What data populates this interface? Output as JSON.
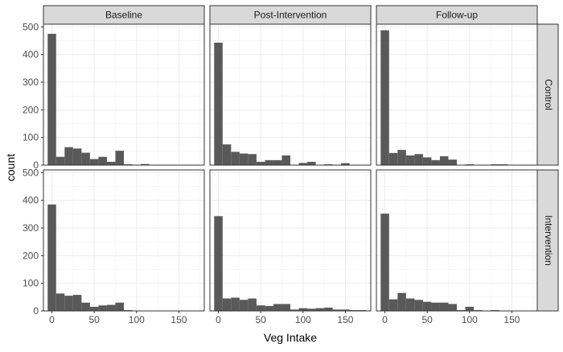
{
  "chart_data": {
    "type": "bar",
    "subtype": "faceted-histogram",
    "xlabel": "Veg Intake",
    "ylabel": "count",
    "xlim": [
      -10,
      180
    ],
    "ylim": [
      0,
      510
    ],
    "x_ticks": [
      0,
      50,
      100,
      150
    ],
    "y_ticks": [
      0,
      100,
      200,
      300,
      400,
      500
    ],
    "bin_width": 10,
    "bin_starts": [
      -5,
      5,
      15,
      25,
      35,
      45,
      55,
      65,
      75,
      85,
      95,
      105,
      115,
      125,
      135,
      145,
      155,
      165
    ],
    "column_facets": [
      "Baseline",
      "Post-Intervention",
      "Follow-up"
    ],
    "row_facets": [
      "Control",
      "Intervention"
    ],
    "grid": true,
    "bar_color": "#595959",
    "strip_color": "#d9d9d9",
    "panels": [
      {
        "row": "Control",
        "column": "Baseline",
        "counts": [
          475,
          30,
          65,
          60,
          45,
          22,
          30,
          12,
          52,
          3,
          0,
          4,
          0,
          0,
          0,
          0,
          0,
          0
        ]
      },
      {
        "row": "Control",
        "column": "Post-Intervention",
        "counts": [
          443,
          75,
          48,
          42,
          40,
          12,
          18,
          18,
          35,
          0,
          8,
          12,
          0,
          3,
          0,
          7,
          0,
          0
        ]
      },
      {
        "row": "Control",
        "column": "Follow-up",
        "counts": [
          488,
          44,
          55,
          35,
          40,
          28,
          18,
          32,
          20,
          0,
          3,
          0,
          0,
          3,
          3,
          0,
          0,
          0
        ]
      },
      {
        "row": "Intervention",
        "column": "Baseline",
        "counts": [
          385,
          63,
          55,
          58,
          30,
          15,
          20,
          22,
          30,
          3,
          0,
          0,
          0,
          0,
          0,
          0,
          0,
          0
        ]
      },
      {
        "row": "Intervention",
        "column": "Post-Intervention",
        "counts": [
          343,
          45,
          48,
          40,
          45,
          20,
          18,
          25,
          25,
          5,
          10,
          8,
          10,
          12,
          5,
          5,
          3,
          3
        ]
      },
      {
        "row": "Intervention",
        "column": "Follow-up",
        "counts": [
          352,
          42,
          65,
          45,
          40,
          33,
          30,
          30,
          25,
          3,
          15,
          3,
          0,
          3,
          0,
          0,
          0,
          0
        ]
      }
    ]
  }
}
